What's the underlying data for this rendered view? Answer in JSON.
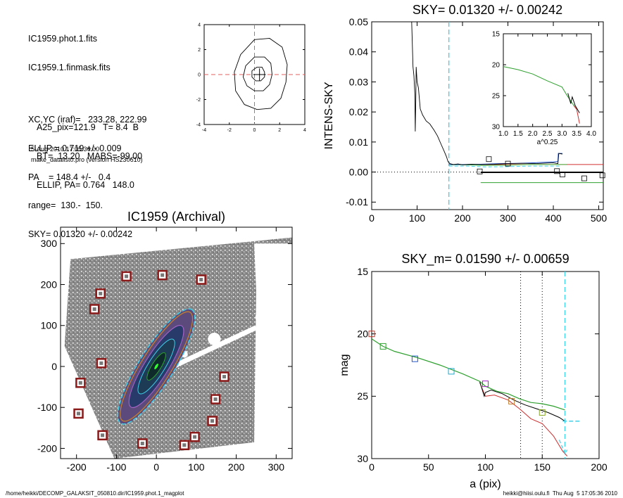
{
  "info": {
    "lines": [
      "IC1959.phot.1.fits",
      "IC1959.1.finmask.fits",
      "",
      "XC,YC (iraf)=   233.28, 222.99",
      "ELLIP = 0.719 +/- 0.009",
      "PA    = 148.4 +/-   0.4",
      "range=  130.-  150.",
      "SKY= 0.01320 +/- 0.00242"
    ],
    "lines2": [
      "A25_pix=121.9   T= 8.4  B",
      "BT=  13.20   MABS=-99.00",
      "ELLIP, PA= 0.764   148.0"
    ],
    "date": "5-Aug-2010 17:05:36.00",
    "program": "make_datalist0.pro (version HS230610)"
  },
  "footer": {
    "left": "/home/heikki/DECOMP_GALAKSIT_050810.dir/IC1959.phot.1_magplot",
    "right": "heikki@hiisi.oulu.fi  Thu Aug  5 17:05:36 2010"
  },
  "chart_data": [
    {
      "type": "line",
      "id": "contour",
      "xlim": [
        -4,
        4
      ],
      "ylim": [
        -4,
        4
      ],
      "xticks": [
        "-4",
        "-2",
        "0",
        "2",
        "4"
      ],
      "yticks": [
        "-4",
        "-2",
        "0",
        "2",
        "4"
      ],
      "center": [
        0.4,
        0
      ],
      "contours": [
        [
          [
            0,
            2.8
          ],
          [
            1.2,
            2.9
          ],
          [
            2.2,
            2.2
          ],
          [
            2.6,
            0.8
          ],
          [
            2.5,
            -0.6
          ],
          [
            2.1,
            -1.9
          ],
          [
            1.3,
            -2.7
          ],
          [
            0.2,
            -2.8
          ],
          [
            -0.8,
            -2.4
          ],
          [
            -1.5,
            -1.3
          ],
          [
            -1.6,
            0.2
          ],
          [
            -1.1,
            1.6
          ],
          [
            0,
            2.8
          ]
        ],
        [
          [
            0,
            1.4
          ],
          [
            0.8,
            1.4
          ],
          [
            1.3,
            0.9
          ],
          [
            1.4,
            0
          ],
          [
            1.2,
            -0.8
          ],
          [
            0.7,
            -1.3
          ],
          [
            0,
            -1.3
          ],
          [
            -0.6,
            -0.9
          ],
          [
            -0.9,
            -0.2
          ],
          [
            -0.7,
            0.7
          ],
          [
            0,
            1.4
          ]
        ],
        [
          [
            0.2,
            0.6
          ],
          [
            0.6,
            0.6
          ],
          [
            0.8,
            0.2
          ],
          [
            0.8,
            -0.2
          ],
          [
            0.5,
            -0.5
          ],
          [
            0.1,
            -0.5
          ],
          [
            -0.2,
            -0.2
          ],
          [
            -0.2,
            0.3
          ],
          [
            0.2,
            0.6
          ]
        ]
      ]
    },
    {
      "type": "line",
      "id": "sky",
      "title": "SKY= 0.01320 +/- 0.00242",
      "ylabel": "INTENS-SKY",
      "xlim": [
        0,
        510
      ],
      "ylim": [
        -0.0125,
        0.05
      ],
      "xticks": [
        0,
        100,
        200,
        300,
        400,
        500
      ],
      "yticks": [
        "-0.01",
        "0.00",
        "0.01",
        "0.02",
        "0.03",
        "0.04",
        "0.05"
      ],
      "sky_line": 170,
      "profile": [
        [
          88,
          0.05
        ],
        [
          91,
          0.035
        ],
        [
          93,
          0.032
        ],
        [
          95,
          0.026
        ],
        [
          96,
          0.0135
        ],
        [
          97,
          0.023
        ],
        [
          98,
          0.035
        ],
        [
          100,
          0.03
        ],
        [
          103,
          0.028
        ],
        [
          107,
          0.021
        ],
        [
          112,
          0.019
        ],
        [
          120,
          0.017
        ],
        [
          128,
          0.016
        ],
        [
          137,
          0.014
        ],
        [
          145,
          0.012
        ],
        [
          152,
          0.0095
        ],
        [
          160,
          0.0068
        ],
        [
          165,
          0.005
        ],
        [
          168,
          0.0035
        ],
        [
          172,
          0.0028
        ],
        [
          180,
          0.0025
        ],
        [
          190,
          0.0027
        ],
        [
          200,
          0.0024
        ],
        [
          220,
          0.0026
        ],
        [
          240,
          0.0025
        ],
        [
          270,
          0.0026
        ],
        [
          300,
          0.0028
        ],
        [
          330,
          0.0029
        ],
        [
          360,
          0.0028
        ],
        [
          400,
          0.0031
        ],
        [
          410,
          0.0028
        ],
        [
          412,
          0.0062
        ],
        [
          420,
          0.006
        ]
      ],
      "blue": [
        [
          170,
          0.0025
        ],
        [
          200,
          0.0025
        ],
        [
          240,
          0.0026
        ],
        [
          280,
          0.0028
        ],
        [
          320,
          0.0029
        ],
        [
          360,
          0.0031
        ],
        [
          400,
          0.0034
        ],
        [
          410,
          0.0035
        ],
        [
          411,
          0.0062
        ],
        [
          420,
          0.0062
        ]
      ],
      "cyan": [
        [
          170,
          0.002
        ],
        [
          210,
          0.002
        ],
        [
          250,
          0.0017
        ],
        [
          300,
          0.0018
        ],
        [
          350,
          0.002
        ],
        [
          400,
          0.002
        ],
        [
          415,
          0.002
        ]
      ],
      "green_upper": [
        [
          170,
          0.0024
        ],
        [
          200,
          0.0024
        ],
        [
          250,
          0.0022
        ],
        [
          300,
          0.0023
        ],
        [
          350,
          0.0025
        ],
        [
          400,
          0.0025
        ],
        [
          430,
          0.0025
        ]
      ],
      "red": [
        [
          240,
          0.0025
        ],
        [
          510,
          0.0025
        ]
      ],
      "black_flat": [
        [
          240,
          -0.0001
        ],
        [
          510,
          -0.0001
        ]
      ],
      "green_low": [
        [
          240,
          -0.0035
        ],
        [
          510,
          -0.0035
        ]
      ],
      "squares": [
        [
          238,
          0.0002
        ],
        [
          258,
          0.0043
        ],
        [
          300,
          0.0028
        ],
        [
          408,
          0.0003
        ],
        [
          420,
          -0.0008
        ],
        [
          468,
          -0.0021
        ],
        [
          508,
          -0.0011
        ]
      ],
      "inset": {
        "xlabel": "a^0.25",
        "xlim": [
          1.0,
          4.0
        ],
        "ylim": [
          30,
          15
        ],
        "xticks": [
          "1.0",
          "1.5",
          "2.0",
          "2.5",
          "3.0",
          "3.5",
          "4.0"
        ],
        "yticks": [
          "15",
          "20",
          "25",
          "30"
        ],
        "green": [
          [
            1,
            20.3
          ],
          [
            1.5,
            20.8
          ],
          [
            2,
            21.5
          ],
          [
            2.5,
            22.6
          ],
          [
            3,
            23.6
          ],
          [
            3.15,
            24.8
          ],
          [
            3.3,
            25.9
          ],
          [
            3.5,
            27.2
          ]
        ],
        "black": [
          [
            3.2,
            24.6
          ],
          [
            3.3,
            26.3
          ],
          [
            3.35,
            25.2
          ],
          [
            3.45,
            26.6
          ],
          [
            3.6,
            27.8
          ]
        ],
        "red": [
          [
            3.4,
            26.6
          ],
          [
            3.5,
            27.2
          ],
          [
            3.6,
            29.5
          ]
        ]
      }
    },
    {
      "type": "line",
      "id": "mag",
      "title": "SKY_m=  0.01590 +/- 0.00659",
      "xlabel": "a (pix)",
      "ylabel": "mag",
      "xlim": [
        0,
        200
      ],
      "ylim": [
        30,
        15
      ],
      "xticks": [
        0,
        50,
        100,
        150,
        200
      ],
      "yticks": [
        15,
        20,
        25,
        30
      ],
      "vlines_dotted": [
        131,
        150
      ],
      "vline_dashed": 170,
      "green": [
        [
          0,
          20.4
        ],
        [
          10,
          21
        ],
        [
          20,
          21.4
        ],
        [
          40,
          21.9
        ],
        [
          60,
          22.5
        ],
        [
          80,
          23.2
        ],
        [
          95,
          23.8
        ],
        [
          100,
          24.2
        ],
        [
          110,
          24.6
        ],
        [
          120,
          24.8
        ],
        [
          130,
          25.2
        ],
        [
          140,
          25.5
        ],
        [
          150,
          25.6
        ],
        [
          160,
          25.8
        ],
        [
          170,
          26.1
        ]
      ],
      "black": [
        [
          95,
          23.8
        ],
        [
          99,
          25
        ],
        [
          100,
          24.7
        ],
        [
          105,
          24.5
        ],
        [
          115,
          24.8
        ],
        [
          125,
          25.3
        ],
        [
          135,
          25.7
        ],
        [
          145,
          26
        ],
        [
          155,
          26.3
        ],
        [
          165,
          26.7
        ],
        [
          170,
          27
        ]
      ],
      "red": [
        [
          95,
          23.9
        ],
        [
          100,
          25
        ],
        [
          108,
          24.9
        ],
        [
          120,
          25.3
        ],
        [
          130,
          26
        ],
        [
          140,
          26.8
        ],
        [
          150,
          27.2
        ],
        [
          160,
          28.2
        ],
        [
          168,
          29.4
        ],
        [
          172,
          29.8
        ]
      ],
      "cyan": [
        [
          165,
          28.5
        ],
        [
          170,
          29.6
        ],
        [
          172,
          29.3
        ]
      ],
      "cyan_flat": [
        [
          168,
          27
        ],
        [
          184,
          27
        ]
      ],
      "squares": [
        {
          "x": 0,
          "y": 20,
          "c": "#c0392b"
        },
        {
          "x": 10,
          "y": 21,
          "c": "#2ea02e"
        },
        {
          "x": 38,
          "y": 22,
          "c": "#2255cc"
        },
        {
          "x": 70,
          "y": 23,
          "c": "#22aacc"
        },
        {
          "x": 100,
          "y": 24,
          "c": "#aa22cc"
        },
        {
          "x": 123,
          "y": 25.4,
          "c": "#c08030"
        },
        {
          "x": 150,
          "y": 26.3,
          "c": "#88aa22"
        }
      ]
    },
    {
      "type": "scatter",
      "id": "image",
      "title": "IC1959 (Archival)",
      "xlim": [
        -240,
        340
      ],
      "ylim": [
        -225,
        340
      ],
      "xticks": [
        -200,
        -100,
        0,
        100,
        200,
        300
      ],
      "yticks": [
        -200,
        -100,
        0,
        100,
        200,
        300
      ],
      "ellipse": {
        "cx": 0,
        "cy": 0,
        "a": 160,
        "b": 38,
        "angle": 148
      },
      "boxes": [
        [
          -75,
          220
        ],
        [
          15,
          223
        ],
        [
          112,
          212
        ],
        [
          -140,
          178
        ],
        [
          -155,
          140
        ],
        [
          -138,
          8
        ],
        [
          -190,
          -40
        ],
        [
          170,
          -25
        ],
        [
          -195,
          -115
        ],
        [
          148,
          -80
        ],
        [
          140,
          -133
        ],
        [
          -135,
          -168
        ],
        [
          -35,
          -188
        ],
        [
          70,
          -192
        ],
        [
          96,
          -172
        ]
      ]
    }
  ]
}
